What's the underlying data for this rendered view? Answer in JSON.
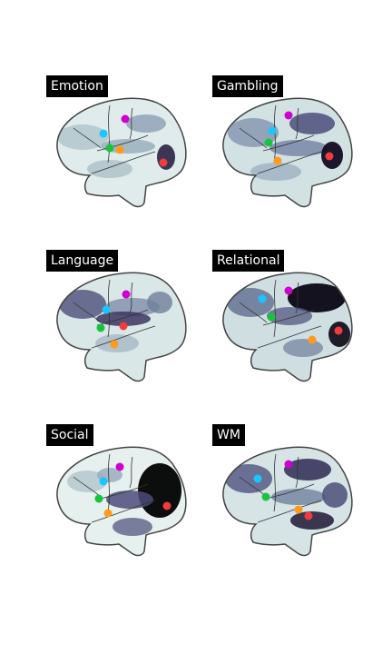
{
  "panels": [
    {
      "label": "Emotion"
    },
    {
      "label": "Gambling"
    },
    {
      "label": "Language"
    },
    {
      "label": "Relational"
    },
    {
      "label": "Social"
    },
    {
      "label": "WM"
    }
  ],
  "marker_colors": {
    "magenta": "#d000d0",
    "cyan": "#19c6ff",
    "green": "#18c43c",
    "orange": "#ff9a1a",
    "red": "#f23b3b"
  },
  "colormap": [
    "#eef6f4",
    "#b9cfd2",
    "#7d90a8",
    "#4a4a78",
    "#1a1030",
    "#000000"
  ]
}
